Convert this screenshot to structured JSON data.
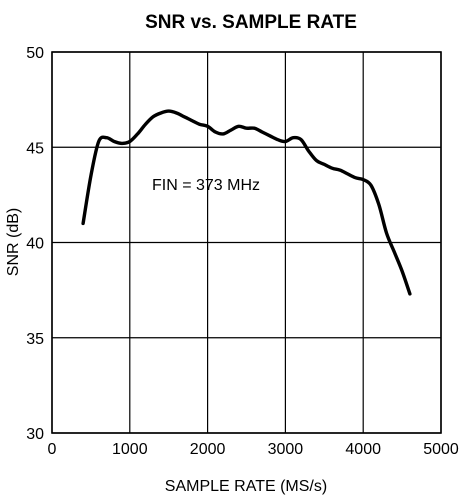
{
  "chart_data": {
    "type": "line",
    "title": "SNR vs. SAMPLE RATE",
    "xlabel": "SAMPLE RATE (MS/s)",
    "ylabel": "SNR (dB)",
    "xlim": [
      0,
      5000
    ],
    "ylim": [
      30,
      50
    ],
    "xticks": [
      0,
      1000,
      2000,
      3000,
      4000,
      5000
    ],
    "yticks": [
      30,
      35,
      40,
      45,
      50
    ],
    "grid": true,
    "annotation": "FIN = 373 MHz",
    "series": [
      {
        "x": [
          400,
          500,
          600,
          700,
          800,
          900,
          1000,
          1100,
          1200,
          1300,
          1400,
          1500,
          1600,
          1700,
          1800,
          1900,
          2000,
          2100,
          2200,
          2300,
          2400,
          2500,
          2600,
          2700,
          2800,
          2900,
          3000,
          3100,
          3200,
          3300,
          3400,
          3500,
          3600,
          3700,
          3800,
          3900,
          4000,
          4100,
          4200,
          4300,
          4400,
          4500,
          4600
        ],
        "y": [
          41.0,
          43.5,
          45.3,
          45.5,
          45.3,
          45.2,
          45.3,
          45.7,
          46.2,
          46.6,
          46.8,
          46.9,
          46.8,
          46.6,
          46.4,
          46.2,
          46.1,
          45.8,
          45.7,
          45.9,
          46.1,
          46.0,
          46.0,
          45.8,
          45.6,
          45.4,
          45.3,
          45.5,
          45.4,
          44.8,
          44.3,
          44.1,
          43.9,
          43.8,
          43.6,
          43.4,
          43.3,
          43.0,
          42.0,
          40.5,
          39.5,
          38.5,
          37.3
        ]
      }
    ]
  }
}
